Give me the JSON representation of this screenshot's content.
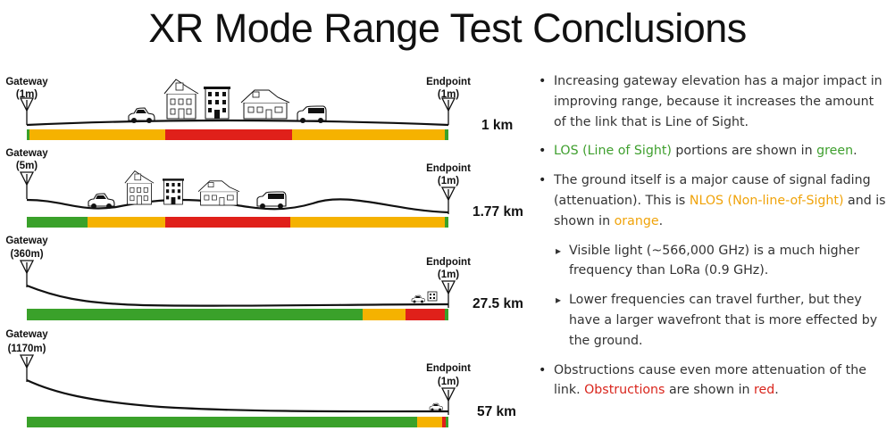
{
  "title": "XR Mode Range Test Conclusions",
  "colors": {
    "los": "#3aa12a",
    "nlos": "#f5b200",
    "obstruction": "#e0201a",
    "ground": "#111111"
  },
  "scenarios": [
    {
      "gateway_label": "Gateway",
      "gateway_height": "(1m)",
      "endpoint_label": "Endpoint",
      "endpoint_height": "(1m)",
      "distance": "1 km"
    },
    {
      "gateway_label": "Gateway",
      "gateway_height": "(5m)",
      "endpoint_label": "Endpoint",
      "endpoint_height": "(1m)",
      "distance": "1.77 km"
    },
    {
      "gateway_label": "Gateway",
      "gateway_height": "(360m)",
      "endpoint_label": "Endpoint",
      "endpoint_height": "(1m)",
      "distance": "27.5 km"
    },
    {
      "gateway_label": "Gateway",
      "gateway_height": "(1170m)",
      "endpoint_label": "Endpoint",
      "endpoint_height": "(1m)",
      "distance": "57 km"
    }
  ],
  "bullets": {
    "b1": "Increasing gateway elevation has a major impact in improving range, because it increases the amount of the link that is Line of Sight.",
    "b2_hl": "LOS (Line of Sight)",
    "b2_mid": " portions are shown in ",
    "b2_hl2": "green",
    "b2_end": ".",
    "b3_pre": "The ground itself is a major cause of signal fading (attenuation).  This is ",
    "b3_hl": "NLOS (Non-line-of-Sight)",
    "b3_mid": " and is shown in ",
    "b3_hl2": "orange",
    "b3_end": ".",
    "s1": "Visible light (~566,000 GHz) is a much higher frequency than LoRa (0.9 GHz).",
    "s2": "Lower frequencies can travel further, but they have a larger wavefront that is more effected by the ground.",
    "b4_pre": "Obstructions cause even more attenuation of the link.  ",
    "b4_hl": "Obstructions",
    "b4_mid": " are shown in ",
    "b4_hl2": "red",
    "b4_end": "."
  }
}
